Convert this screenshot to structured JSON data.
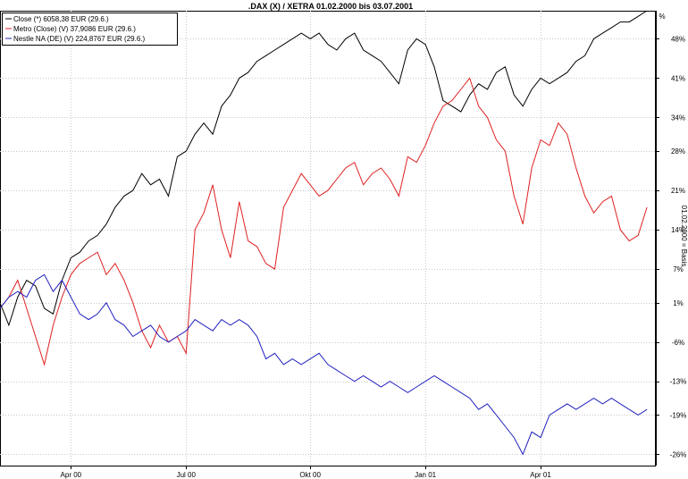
{
  "chart_data": {
    "type": "line",
    "title": ".DAX (X) / XETRA 01.02.2000 bis 03.07.2001",
    "ylabel_right": "01.02.2000 = Basis",
    "unit_label": "%",
    "ylim": [
      -28,
      53
    ],
    "yticks": [
      {
        "value": 48,
        "label": "48%"
      },
      {
        "value": 41,
        "label": "41%"
      },
      {
        "value": 34,
        "label": "34%"
      },
      {
        "value": 28,
        "label": "28%"
      },
      {
        "value": 21,
        "label": "21%"
      },
      {
        "value": 14,
        "label": "14%"
      },
      {
        "value": 7,
        "label": "7%"
      },
      {
        "value": 1,
        "label": "1%"
      },
      {
        "value": -6,
        "label": "-6%"
      },
      {
        "value": -13,
        "label": "-13%"
      },
      {
        "value": -19,
        "label": "-19%"
      },
      {
        "value": -26,
        "label": "-26%"
      }
    ],
    "xlim": [
      0,
      74
    ],
    "xticks": [
      {
        "value": 8,
        "label": "Apr 00"
      },
      {
        "value": 21,
        "label": "Jul 00"
      },
      {
        "value": 35,
        "label": "Okt 00"
      },
      {
        "value": 48,
        "label": "Jan 01"
      },
      {
        "value": 61,
        "label": "Apr 01"
      }
    ],
    "grid": true,
    "legend_position": "top-left",
    "series": [
      {
        "name": "Close (*) 6058,38 EUR (29.6.)",
        "color": "#000000",
        "values": [
          1,
          -3,
          2,
          5,
          4,
          0,
          -1,
          5,
          9,
          10,
          12,
          13,
          15,
          18,
          20,
          21,
          24,
          22,
          23,
          20,
          27,
          28,
          31,
          33,
          31,
          36,
          38,
          41,
          42,
          44,
          45,
          46,
          47,
          48,
          49,
          48,
          49,
          47,
          46,
          48,
          49,
          46,
          45,
          44,
          42,
          40,
          46,
          48,
          47,
          43,
          37,
          36,
          35,
          38,
          40,
          39,
          42,
          43,
          38,
          36,
          39,
          41,
          40,
          41,
          42,
          44,
          45,
          48,
          49,
          50,
          51,
          51,
          52,
          53
        ]
      },
      {
        "name": "Metro (Close) (V) 37,9086 EUR (29.6.)",
        "color": "#e02020",
        "values": [
          0,
          2,
          5,
          0,
          -5,
          -10,
          -3,
          2,
          6,
          8,
          9,
          10,
          6,
          8,
          5,
          1,
          -4,
          -7,
          -3,
          -6,
          -5,
          -8,
          14,
          17,
          22,
          14,
          9,
          19,
          12,
          11,
          8,
          7,
          18,
          21,
          24,
          22,
          20,
          21,
          23,
          25,
          26,
          22,
          24,
          25,
          23,
          20,
          27,
          26,
          29,
          33,
          36,
          37,
          39,
          41,
          36,
          34,
          30,
          28,
          20,
          15,
          25,
          30,
          29,
          33,
          31,
          25,
          20,
          17,
          19,
          20,
          14,
          12,
          13,
          18
        ]
      },
      {
        "name": "Nestle NA (DE) (V) 224,8767 EUR (29.6.)",
        "color": "#2020c0",
        "values": [
          0,
          2,
          3,
          2,
          5,
          6,
          3,
          5,
          2,
          -1,
          -2,
          -1,
          1,
          -2,
          -3,
          -5,
          -4,
          -3,
          -5,
          -6,
          -5,
          -4,
          -2,
          -3,
          -4,
          -2,
          -3,
          -2,
          -3,
          -5,
          -9,
          -8,
          -10,
          -9,
          -10,
          -9,
          -8,
          -10,
          -11,
          -12,
          -13,
          -12,
          -13,
          -14,
          -13,
          -14,
          -15,
          -14,
          -13,
          -12,
          -13,
          -14,
          -15,
          -16,
          -18,
          -17,
          -19,
          -21,
          -23,
          -26,
          -22,
          -23,
          -19,
          -18,
          -17,
          -18,
          -17,
          -16,
          -17,
          -16,
          -17,
          -18,
          -19,
          -18
        ]
      }
    ]
  }
}
